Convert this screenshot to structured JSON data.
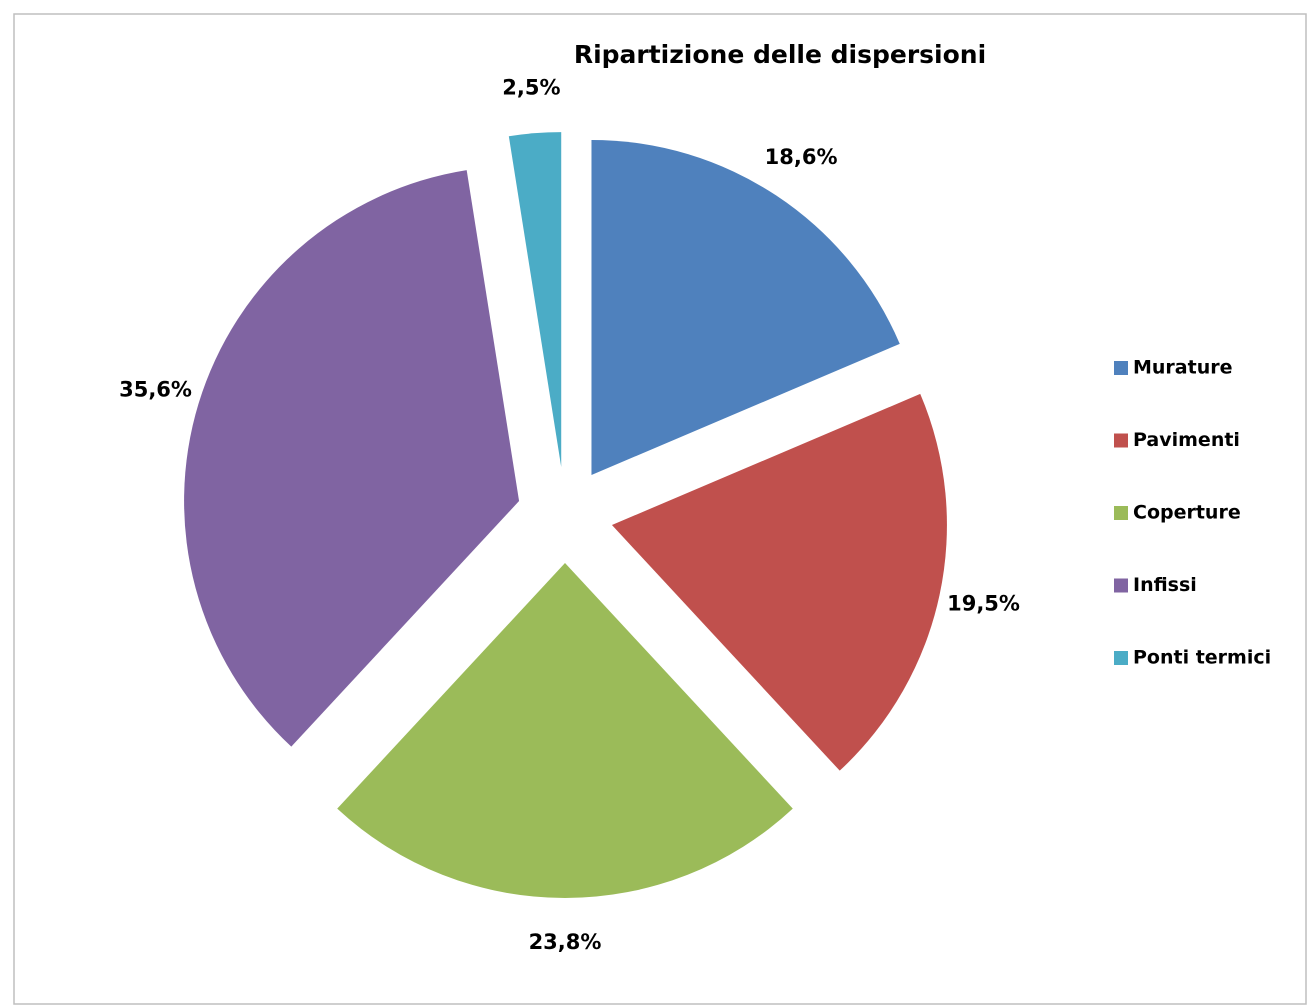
{
  "chart_data": {
    "type": "pie",
    "title": "Ripartizione delle dispersioni",
    "categories": [
      "Murature",
      "Pavimenti",
      "Coperture",
      "Infissi",
      "Ponti termici"
    ],
    "values": [
      18.6,
      19.5,
      23.8,
      35.6,
      2.5
    ],
    "value_labels": [
      "18,6%",
      "19,5%",
      "23,8%",
      "35,6%",
      "2,5%"
    ],
    "colors": [
      "#4f81bd",
      "#c0504d",
      "#9bbb59",
      "#8064a2",
      "#4bacc6"
    ],
    "legend": "right"
  }
}
